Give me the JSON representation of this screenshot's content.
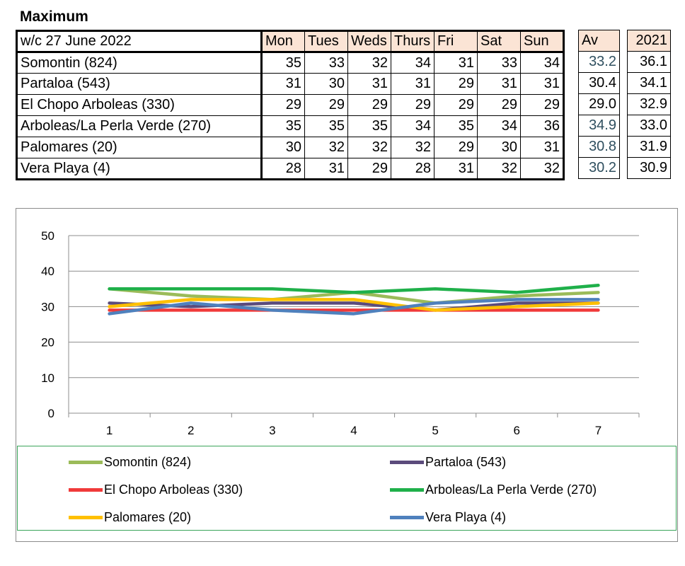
{
  "title": "Maximum",
  "table": {
    "week_label": "w/c 27 June 2022",
    "days": [
      "Mon",
      "Tues",
      "Weds",
      "Thurs",
      "Fri",
      "Sat",
      "Sun"
    ],
    "av_header": "Av",
    "prev_header": "2021",
    "rows": [
      {
        "name": "Somontin (824)",
        "values": [
          "35",
          "33",
          "32",
          "34",
          "31",
          "33",
          "34"
        ],
        "av": "33.2",
        "prev": "36.1"
      },
      {
        "name": "Partaloa (543)",
        "values": [
          "31",
          "30",
          "31",
          "31",
          "29",
          "31",
          "31"
        ],
        "av": "30.4",
        "prev": "34.1"
      },
      {
        "name": "El Chopo  Arboleas (330)",
        "values": [
          "29",
          "29",
          "29",
          "29",
          "29",
          "29",
          "29"
        ],
        "av": "29.0",
        "prev": "32.9"
      },
      {
        "name": "Arboleas/La Perla Verde (270)",
        "values": [
          "35",
          "35",
          "35",
          "34",
          "35",
          "34",
          "36"
        ],
        "av": "34.9",
        "prev": "33.0"
      },
      {
        "name": "Palomares (20)",
        "values": [
          "30",
          "32",
          "32",
          "32",
          "29",
          "30",
          "31"
        ],
        "av": "30.8",
        "prev": "31.9"
      },
      {
        "name": "Vera Playa (4)",
        "values": [
          "28",
          "31",
          "29",
          "28",
          "31",
          "32",
          "32"
        ],
        "av": "30.2",
        "prev": "30.9"
      }
    ]
  },
  "chart_data": {
    "type": "line",
    "title": "",
    "xlabel": "",
    "ylabel": "",
    "x": [
      1,
      2,
      3,
      4,
      5,
      6,
      7
    ],
    "ylim": [
      0,
      50
    ],
    "yticks": [
      0,
      10,
      20,
      30,
      40,
      50
    ],
    "grid": true,
    "legend": "bottom",
    "series": [
      {
        "name": "Somontin (824)",
        "color": "#9bbb59",
        "values": [
          35,
          33,
          32,
          34,
          31,
          33,
          34
        ]
      },
      {
        "name": "Partaloa (543)",
        "color": "#5b4b7c",
        "values": [
          31,
          30,
          31,
          31,
          29,
          31,
          31
        ]
      },
      {
        "name": "El Chopo  Arboleas (330)",
        "color": "#f03a3a",
        "values": [
          29,
          29,
          29,
          29,
          29,
          29,
          29
        ]
      },
      {
        "name": "Arboleas/La Perla Verde (270)",
        "color": "#1fb04a",
        "values": [
          35,
          35,
          35,
          34,
          35,
          34,
          36
        ]
      },
      {
        "name": "Palomares (20)",
        "color": "#ffc000",
        "values": [
          30,
          32,
          32,
          32,
          29,
          30,
          31
        ]
      },
      {
        "name": "Vera Playa (4)",
        "color": "#4f81bd",
        "values": [
          28,
          31,
          29,
          28,
          31,
          32,
          32
        ]
      }
    ]
  }
}
